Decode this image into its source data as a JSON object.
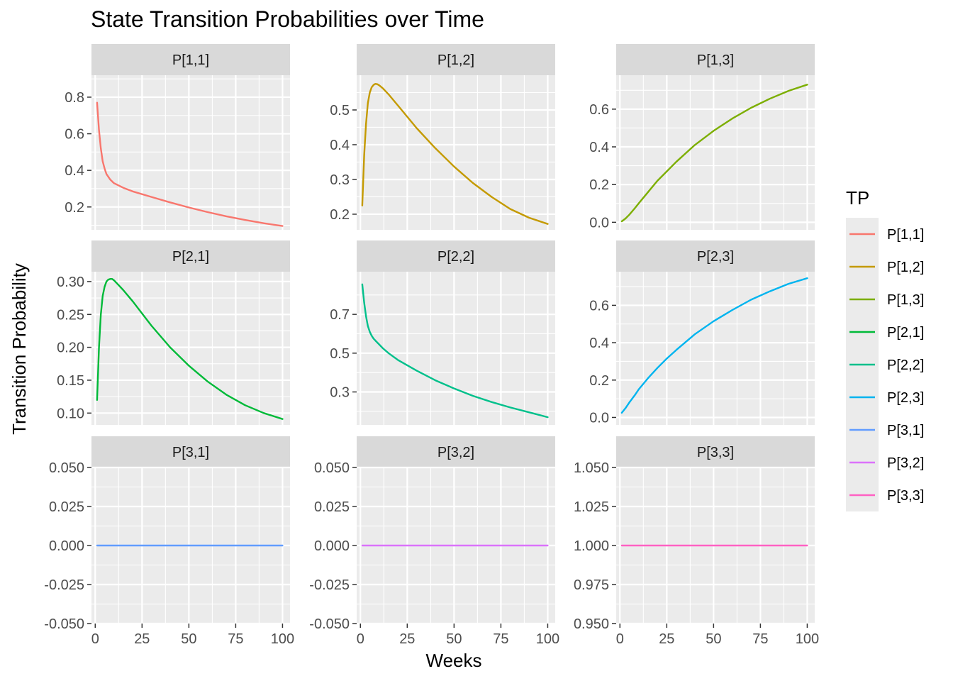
{
  "chart_data": {
    "type": "line",
    "title": "State Transition Probabilities over Time",
    "xlabel": "Weeks",
    "ylabel": "Transition Probability",
    "xlim": [
      -2,
      104
    ],
    "x_ticks": [
      0,
      25,
      50,
      75,
      100
    ],
    "grid": true,
    "legend": {
      "title": "TP",
      "position": "right",
      "entries": [
        "P[1,1]",
        "P[1,2]",
        "P[1,3]",
        "P[2,1]",
        "P[2,2]",
        "P[2,3]",
        "P[3,1]",
        "P[3,2]",
        "P[3,3]"
      ]
    },
    "panels": [
      {
        "name": "P[1,1]",
        "color": "#F8766D",
        "ylim": [
          0.075,
          0.92
        ],
        "y_ticks": [
          0.2,
          0.4,
          0.6,
          0.8
        ],
        "y_tick_labels": [
          "0.2",
          "0.4",
          "0.6",
          "0.8"
        ],
        "x": [
          1,
          2,
          3,
          4,
          5,
          6,
          8,
          10,
          15,
          20,
          30,
          40,
          50,
          60,
          70,
          80,
          90,
          100
        ],
        "y": [
          0.77,
          0.62,
          0.52,
          0.45,
          0.41,
          0.38,
          0.35,
          0.33,
          0.305,
          0.285,
          0.255,
          0.225,
          0.197,
          0.172,
          0.149,
          0.129,
          0.111,
          0.096
        ]
      },
      {
        "name": "P[1,2]",
        "color": "#C49A00",
        "ylim": [
          0.155,
          0.6
        ],
        "y_ticks": [
          0.2,
          0.3,
          0.4,
          0.5
        ],
        "y_tick_labels": [
          "0.2",
          "0.3",
          "0.4",
          "0.5"
        ],
        "x": [
          1,
          2,
          3,
          4,
          5,
          6,
          7,
          8,
          9,
          10,
          12,
          15,
          20,
          30,
          40,
          50,
          60,
          70,
          80,
          90,
          100
        ],
        "y": [
          0.225,
          0.37,
          0.46,
          0.52,
          0.55,
          0.565,
          0.572,
          0.575,
          0.574,
          0.571,
          0.562,
          0.545,
          0.513,
          0.448,
          0.39,
          0.337,
          0.29,
          0.25,
          0.215,
          0.19,
          0.172
        ]
      },
      {
        "name": "P[1,3]",
        "color": "#7CAE00",
        "ylim": [
          -0.04,
          0.78
        ],
        "y_ticks": [
          0.0,
          0.2,
          0.4,
          0.6
        ],
        "y_tick_labels": [
          "0.0",
          "0.2",
          "0.4",
          "0.6"
        ],
        "x": [
          1,
          3,
          5,
          8,
          10,
          15,
          20,
          25,
          30,
          40,
          50,
          60,
          70,
          80,
          90,
          100
        ],
        "y": [
          0.005,
          0.02,
          0.04,
          0.075,
          0.1,
          0.16,
          0.22,
          0.27,
          0.32,
          0.41,
          0.485,
          0.55,
          0.607,
          0.655,
          0.697,
          0.73
        ]
      },
      {
        "name": "P[2,1]",
        "color": "#00BA38",
        "ylim": [
          0.082,
          0.315
        ],
        "y_ticks": [
          0.1,
          0.15,
          0.2,
          0.25,
          0.3
        ],
        "y_tick_labels": [
          "0.10",
          "0.15",
          "0.20",
          "0.25",
          "0.30"
        ],
        "x": [
          1,
          2,
          3,
          4,
          5,
          6,
          7,
          8,
          9,
          10,
          12,
          15,
          20,
          30,
          40,
          50,
          60,
          70,
          80,
          90,
          100
        ],
        "y": [
          0.12,
          0.2,
          0.25,
          0.278,
          0.292,
          0.3,
          0.303,
          0.304,
          0.304,
          0.302,
          0.296,
          0.287,
          0.27,
          0.233,
          0.2,
          0.172,
          0.148,
          0.128,
          0.112,
          0.1,
          0.091
        ]
      },
      {
        "name": "P[2,2]",
        "color": "#00C08B",
        "ylim": [
          0.13,
          0.92
        ],
        "y_ticks": [
          0.3,
          0.5,
          0.7
        ],
        "y_tick_labels": [
          "0.3",
          "0.5",
          "0.7"
        ],
        "x": [
          1,
          2,
          3,
          4,
          5,
          6,
          7,
          8,
          10,
          12,
          15,
          20,
          30,
          40,
          50,
          60,
          70,
          80,
          90,
          100
        ],
        "y": [
          0.855,
          0.76,
          0.69,
          0.64,
          0.61,
          0.59,
          0.575,
          0.565,
          0.545,
          0.525,
          0.5,
          0.465,
          0.41,
          0.36,
          0.318,
          0.28,
          0.248,
          0.22,
          0.195,
          0.17
        ]
      },
      {
        "name": "P[2,3]",
        "color": "#00B4EF",
        "ylim": [
          -0.04,
          0.78
        ],
        "y_ticks": [
          0.0,
          0.2,
          0.4,
          0.6
        ],
        "y_tick_labels": [
          "0.0",
          "0.2",
          "0.4",
          "0.6"
        ],
        "x": [
          1,
          3,
          5,
          8,
          10,
          15,
          20,
          25,
          30,
          40,
          50,
          60,
          70,
          80,
          90,
          100
        ],
        "y": [
          0.025,
          0.05,
          0.08,
          0.12,
          0.15,
          0.21,
          0.265,
          0.315,
          0.36,
          0.445,
          0.515,
          0.575,
          0.63,
          0.675,
          0.715,
          0.745
        ]
      },
      {
        "name": "P[3,1]",
        "color": "#619CFF",
        "ylim": [
          -0.05,
          0.05
        ],
        "y_ticks": [
          -0.05,
          -0.025,
          0.0,
          0.025,
          0.05
        ],
        "y_tick_labels": [
          "-0.050",
          "-0.025",
          "0.000",
          "0.025",
          "0.050"
        ],
        "x": [
          1,
          100
        ],
        "y": [
          0.0,
          0.0
        ]
      },
      {
        "name": "P[3,2]",
        "color": "#DB72FB",
        "ylim": [
          -0.05,
          0.05
        ],
        "y_ticks": [
          -0.05,
          -0.025,
          0.0,
          0.025,
          0.05
        ],
        "y_tick_labels": [
          "-0.050",
          "-0.025",
          "0.000",
          "0.025",
          "0.050"
        ],
        "x": [
          1,
          100
        ],
        "y": [
          0.0,
          0.0
        ]
      },
      {
        "name": "P[3,3]",
        "color": "#FF61C3",
        "ylim": [
          0.95,
          1.05
        ],
        "y_ticks": [
          0.95,
          0.975,
          1.0,
          1.025,
          1.05
        ],
        "y_tick_labels": [
          "0.950",
          "0.975",
          "1.000",
          "1.025",
          "1.050"
        ],
        "x": [
          1,
          100
        ],
        "y": [
          1.0,
          1.0
        ]
      }
    ]
  }
}
